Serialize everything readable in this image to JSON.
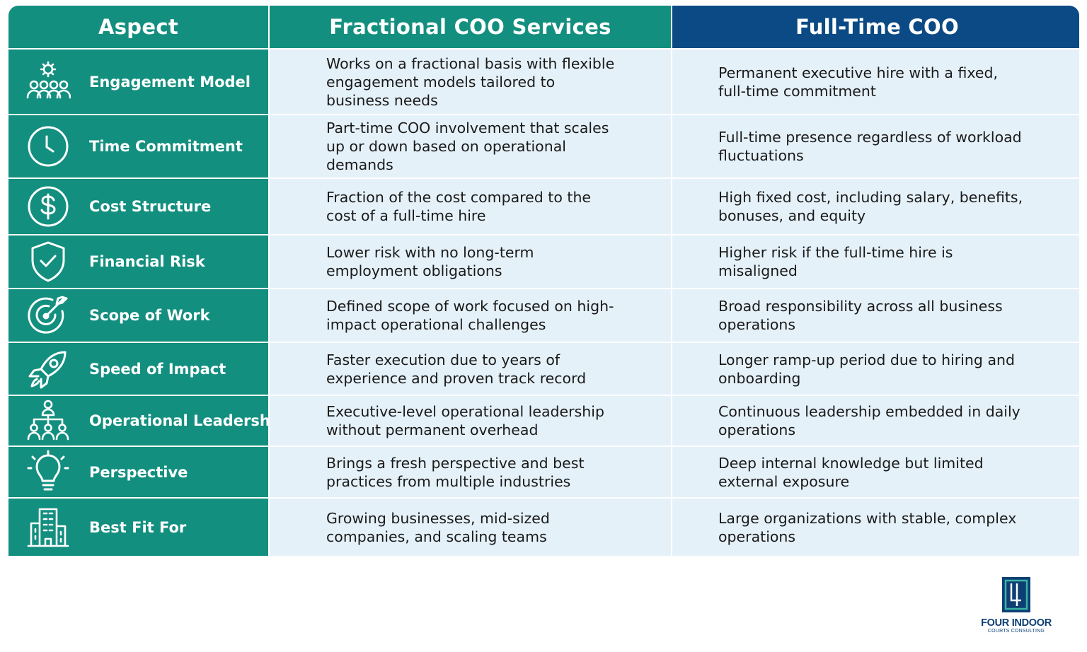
{
  "header": {
    "aspect": "Aspect",
    "fractional": "Fractional COO Services",
    "fulltime": "Full-Time COO"
  },
  "rows": [
    {
      "aspect": "Engagement Model",
      "icon": "team-gear-icon",
      "fractional": "Works on a fractional basis with flexible engagement models tailored to business needs",
      "fulltime": "Permanent executive hire with a fixed, full-time commitment"
    },
    {
      "aspect": "Time Commitment",
      "icon": "clock-icon",
      "fractional": "Part-time COO involvement that scales up or down based on operational demands",
      "fulltime": "Full-time presence regardless of workload fluctuations"
    },
    {
      "aspect": "Cost Structure",
      "icon": "dollar-icon",
      "fractional": "Fraction of the cost compared to the cost of a full-time hire",
      "fulltime": "High fixed cost, including salary, benefits, bonuses, and equity"
    },
    {
      "aspect": "Financial Risk",
      "icon": "shield-check-icon",
      "fractional": "Lower risk with no long-term employment obligations",
      "fulltime": "Higher risk if the full-time hire is misaligned"
    },
    {
      "aspect": "Scope of Work",
      "icon": "target-icon",
      "fractional": "Defined scope of work focused on high-impact operational challenges",
      "fulltime": "Broad responsibility across all business operations"
    },
    {
      "aspect": "Speed of Impact",
      "icon": "rocket-icon",
      "fractional": "Faster execution due to years of experience and proven track record",
      "fulltime": "Longer ramp-up period due to hiring and onboarding"
    },
    {
      "aspect": "Operational Leadership",
      "icon": "org-chart-icon",
      "fractional": "Executive-level operational leadership without permanent overhead",
      "fulltime": "Continuous leadership embedded in daily operations"
    },
    {
      "aspect": "Perspective",
      "icon": "lightbulb-icon",
      "fractional": "Brings a fresh perspective and best practices from multiple industries",
      "fulltime": "Deep internal knowledge but limited external exposure"
    },
    {
      "aspect": "Best Fit For",
      "icon": "building-icon",
      "fractional": "Growing businesses, mid-sized companies, and scaling teams",
      "fulltime": "Large organizations with stable, complex operations"
    }
  ],
  "logo": {
    "name": "FOUR INDOOR",
    "sub": "COURTS CONSULTING"
  },
  "colors": {
    "teal": "#138f7f",
    "navy": "#0b4a84",
    "cell": "#e5f1f9"
  }
}
